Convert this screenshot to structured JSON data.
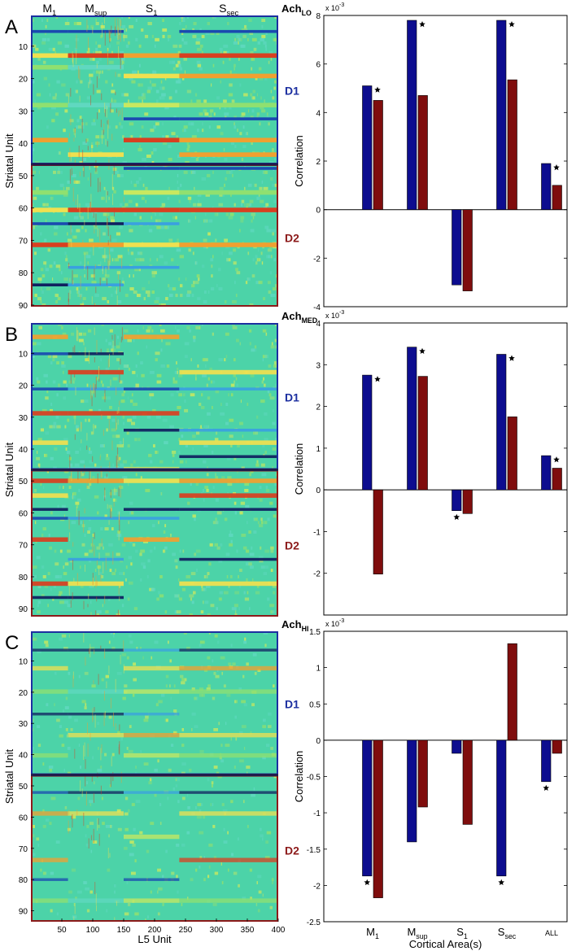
{
  "chart_data": [
    {
      "panel_letter": "A",
      "condition": {
        "base": "Ach",
        "sub": "LO"
      },
      "type": "heatmap",
      "ylabel": "Striatal Unit",
      "xlabel": "",
      "xlim": [
        1,
        400
      ],
      "ylim": [
        1,
        90
      ],
      "yticks": [
        "10",
        "20",
        "30",
        "40",
        "50",
        "60",
        "70",
        "80",
        "90"
      ],
      "xticks": [],
      "region_labels": [
        {
          "base": "M",
          "sub": "1"
        },
        {
          "base": "M",
          "sub": "sup"
        },
        {
          "base": "S",
          "sub": "1"
        },
        {
          "base": "S",
          "sub": "sec"
        }
      ],
      "region_bounds": [
        0,
        60,
        150,
        240,
        400
      ],
      "groups": [
        {
          "name": "D1",
          "rows": [
            1,
            46
          ],
          "color": "#1c2fa0"
        },
        {
          "name": "D2",
          "rows": [
            47,
            90
          ],
          "color": "#8c1a1a"
        }
      ]
    },
    {
      "panel_letter": "",
      "type": "bar",
      "categories": [
        "M1",
        "Msup",
        "S1",
        "Ssec",
        "ALL"
      ],
      "series": [
        {
          "values": [
            5.1,
            7.8,
            -3.1,
            7.8,
            1.9
          ],
          "color": "#0d0d8f"
        },
        {
          "values": [
            4.5,
            4.7,
            -3.35,
            5.35,
            1.0
          ],
          "color": "#7f0d0d"
        }
      ],
      "significance": [
        {
          "series": 0,
          "index": 0
        },
        {
          "series": 0,
          "index": 1
        },
        {
          "series": 0,
          "index": 3
        },
        {
          "series": 0,
          "index": 4
        }
      ],
      "ylabel": "Correlation",
      "exponent": "x 10",
      "exponent_power": "-3",
      "ylim": [
        -4,
        8
      ],
      "yticks": [
        "-4",
        "-2",
        "0",
        "2",
        "4",
        "6",
        "8"
      ],
      "show_xticklabels": false
    },
    {
      "panel_letter": "B",
      "condition": {
        "base": "Ach",
        "sub": "MED"
      },
      "type": "heatmap",
      "ylabel": "Striatal Unit",
      "xlabel": "",
      "xlim": [
        1,
        400
      ],
      "ylim": [
        1,
        92
      ],
      "yticks": [
        "10",
        "20",
        "30",
        "40",
        "50",
        "60",
        "70",
        "80",
        "90"
      ],
      "xticks": [],
      "groups": [
        {
          "name": "D1",
          "rows": [
            1,
            46
          ],
          "color": "#1c2fa0"
        },
        {
          "name": "D2",
          "rows": [
            47,
            92
          ],
          "color": "#8c1a1a"
        }
      ]
    },
    {
      "panel_letter": "",
      "type": "bar",
      "categories": [
        "M1",
        "Msup",
        "S1",
        "Ssec",
        "ALL"
      ],
      "series": [
        {
          "values": [
            2.75,
            3.42,
            -0.5,
            3.25,
            0.82
          ],
          "color": "#0d0d8f"
        },
        {
          "values": [
            -2.02,
            2.72,
            -0.57,
            1.75,
            0.52
          ],
          "color": "#7f0d0d"
        }
      ],
      "significance": [
        {
          "series": 0,
          "index": 0
        },
        {
          "series": 0,
          "index": 1
        },
        {
          "series": 0,
          "index": 2
        },
        {
          "series": 0,
          "index": 3
        },
        {
          "series": 0,
          "index": 4
        }
      ],
      "ylabel": "Correlation",
      "exponent": "x 10",
      "exponent_power": "-3",
      "ylim": [
        -3,
        4
      ],
      "yticks": [
        "-2",
        "-1",
        "0",
        "1",
        "2",
        "3",
        "4"
      ],
      "show_xticklabels": false
    },
    {
      "panel_letter": "C",
      "condition": {
        "base": "Ach",
        "sub": "HI"
      },
      "type": "heatmap",
      "ylabel": "Striatal Unit",
      "xlabel": "L5 Unit",
      "xlim": [
        1,
        400
      ],
      "ylim": [
        1,
        93
      ],
      "yticks": [
        "10",
        "20",
        "30",
        "40",
        "50",
        "60",
        "70",
        "80",
        "90"
      ],
      "xticks": [
        "50",
        "100",
        "150",
        "200",
        "250",
        "300",
        "350",
        "400"
      ],
      "groups": [
        {
          "name": "D1",
          "rows": [
            1,
            46
          ],
          "color": "#1c2fa0"
        },
        {
          "name": "D2",
          "rows": [
            47,
            93
          ],
          "color": "#8c1a1a"
        }
      ]
    },
    {
      "panel_letter": "",
      "type": "bar",
      "categories": [
        "M1",
        "Msup",
        "S1",
        "Ssec",
        "ALL"
      ],
      "category_labels": [
        {
          "base": "M",
          "sub": "1"
        },
        {
          "base": "M",
          "sub": "sup"
        },
        {
          "base": "S",
          "sub": "1"
        },
        {
          "base": "S",
          "sub": "sec"
        },
        {
          "base": "ALL",
          "sub": ""
        }
      ],
      "series": [
        {
          "values": [
            -1.87,
            -1.4,
            -0.18,
            -1.87,
            -0.57
          ],
          "color": "#0d0d8f"
        },
        {
          "values": [
            -2.17,
            -0.92,
            -1.16,
            1.33,
            -0.18
          ],
          "color": "#7f0d0d"
        }
      ],
      "significance": [
        {
          "series": 0,
          "index": 0
        },
        {
          "series": 0,
          "index": 3
        },
        {
          "series": 0,
          "index": 4
        }
      ],
      "ylabel": "Correlation",
      "xlabel": "Cortical Area(s)",
      "exponent": "x 10",
      "exponent_power": "-3",
      "ylim": [
        -2.5,
        1.5
      ],
      "yticks": [
        "-2.5",
        "-2",
        "-1.5",
        "-1",
        "-0.5",
        "0",
        "0.5",
        "1",
        "1.5"
      ],
      "show_xticklabels": true
    }
  ],
  "style": {
    "heatmap_base": "#4cd3a8",
    "d1_color": "#1c2fa0",
    "d2_color": "#8c1a1a",
    "bar_blue": "#0d0d8f",
    "bar_red": "#7f0d0d"
  }
}
